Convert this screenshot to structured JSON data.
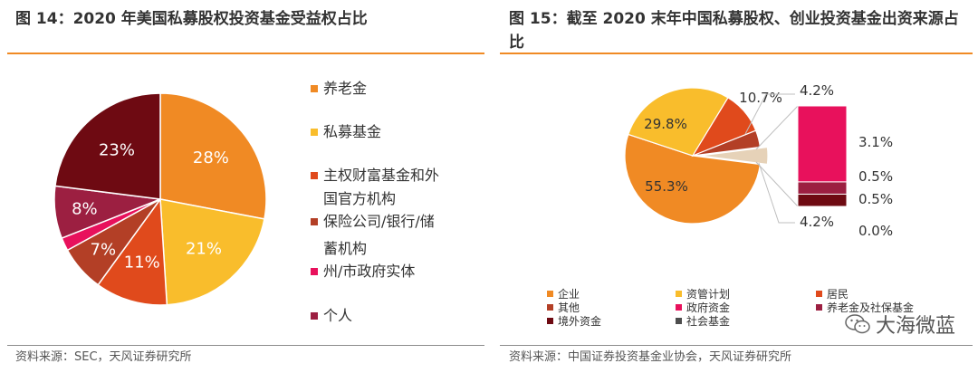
{
  "figures": {
    "left": {
      "title": "图 14：2020 年美国私募股权投资基金受益权占比",
      "source": "资料来源：SEC，天风证券研究所"
    },
    "right": {
      "title": "图 15：截至 2020 末年中国私募股权、创业投资基金出资来源占比",
      "source": "资料来源：中国证券投资基金业协会，天风证券研究所"
    }
  },
  "watermark": "大海微蓝",
  "chart_data": [
    {
      "type": "pie",
      "title": "",
      "slices": [
        {
          "label": "养老金",
          "value": 28,
          "display": "28%",
          "color": "#f08a24"
        },
        {
          "label": "私募基金",
          "value": 21,
          "display": "21%",
          "color": "#f9bd2c"
        },
        {
          "label": "主权财富基金和外国官方机构",
          "value": 11,
          "display": "11%",
          "color": "#e04a1c"
        },
        {
          "label": "保险公司/银行/储蓄机构",
          "value": 7,
          "display": "7%",
          "color": "#b33f26"
        },
        {
          "label": "州/市政府实体",
          "value": 2,
          "display": "",
          "color": "#e8115c"
        },
        {
          "label": "个人",
          "value": 8,
          "display": "8%",
          "color": "#9c1f41"
        },
        {
          "label": "",
          "value": 23,
          "display": "23%",
          "color": "#6e0a12"
        }
      ],
      "legend_lines": [
        {
          "text": "养老金",
          "color": "#f08a24"
        },
        {
          "text": "私募基金",
          "color": "#f9bd2c"
        },
        {
          "text": "主权财富基金和外",
          "color": "#e04a1c"
        },
        {
          "text": "国官方机构",
          "color": ""
        },
        {
          "text": "保险公司/银行/储",
          "color": "#b33f26"
        },
        {
          "text": "蓄机构",
          "color": ""
        },
        {
          "text": "州/市政府实体",
          "color": "#e8115c"
        },
        {
          "text": "个人",
          "color": "#9c1f41"
        }
      ],
      "legend_position": "right"
    },
    {
      "type": "pie",
      "title": "",
      "slices": [
        {
          "label": "企业",
          "value": 55.3,
          "display": "55.3%",
          "color": "#f08a24"
        },
        {
          "label": "资管计划",
          "value": 29.8,
          "display": "29.8%",
          "color": "#f9bd2c"
        },
        {
          "label": "居民",
          "value": 10.7,
          "display": "10.7%",
          "color": "#e04a1c"
        },
        {
          "label": "其他",
          "value": 4.2,
          "display": "4.2%",
          "color": "#b33f26"
        },
        {
          "label": "exploded",
          "value": 4.2,
          "display": "4.2%",
          "color": "#e6d2b8"
        }
      ],
      "breakdown": {
        "type": "stacked-bar",
        "items": [
          {
            "label": "政府资金",
            "value": 3.1,
            "display": "3.1%",
            "color": "#e8115c"
          },
          {
            "label": "养老金及社保基金",
            "value": 0.5,
            "display": "0.5%",
            "color": "#9c1f41"
          },
          {
            "label": "境外资金",
            "value": 0.5,
            "display": "0.5%",
            "color": "#6e0a12"
          },
          {
            "label": "社会基金",
            "value": 0.0,
            "display": "0.0%",
            "color": "#4d4d4d"
          }
        ]
      },
      "legend": [
        {
          "label": "企业",
          "color": "#f08a24"
        },
        {
          "label": "资管计划",
          "color": "#f9bd2c"
        },
        {
          "label": "居民",
          "color": "#e04a1c"
        },
        {
          "label": "其他",
          "color": "#b33f26"
        },
        {
          "label": "政府资金",
          "color": "#e8115c"
        },
        {
          "label": "养老金及社保基金",
          "color": "#9c1f41"
        },
        {
          "label": "境外资金",
          "color": "#6e0a12"
        },
        {
          "label": "社会基金",
          "color": "#4d4d4d"
        }
      ],
      "legend_position": "bottom"
    }
  ]
}
